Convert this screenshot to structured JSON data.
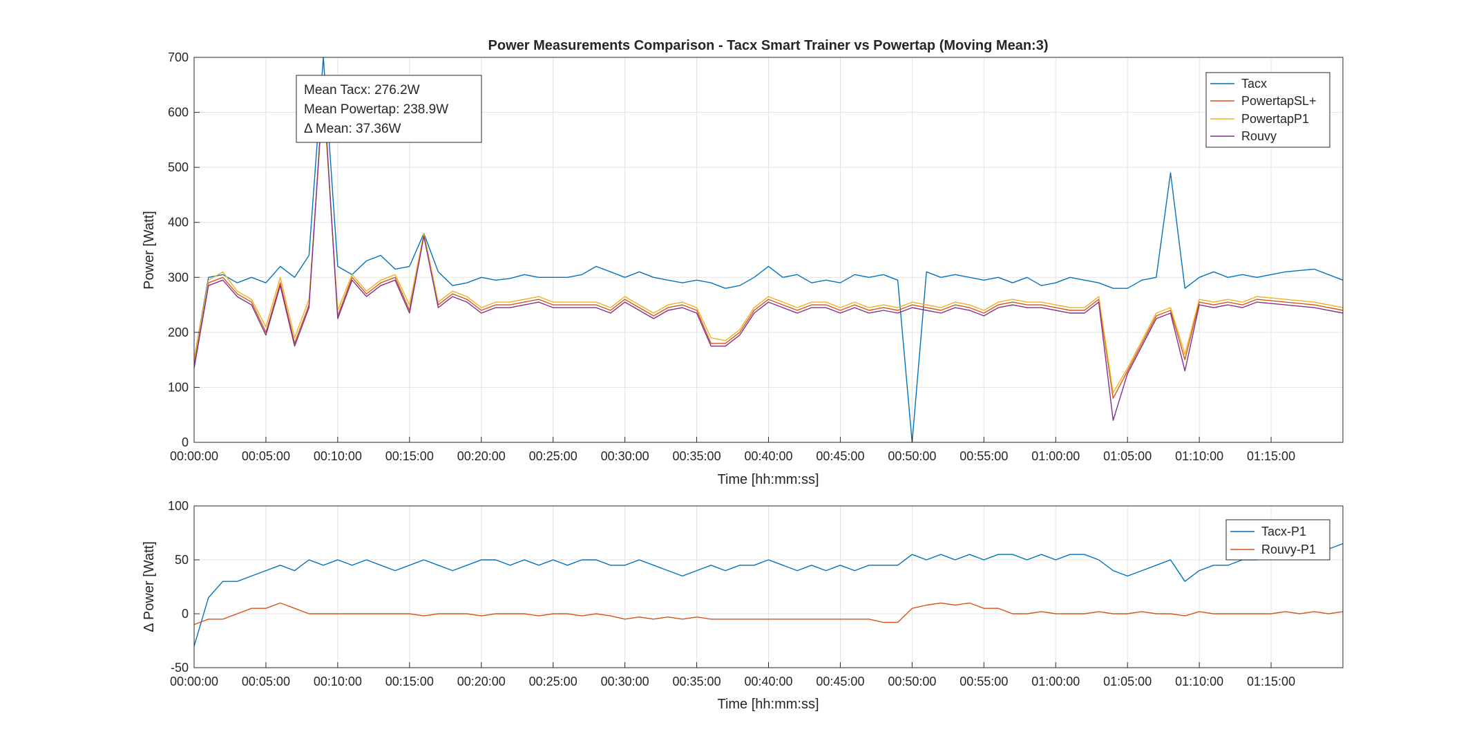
{
  "chart_data": [
    {
      "type": "line",
      "title": "Power Measurements Comparison - Tacx Smart Trainer vs Powertap (Moving Mean:3)",
      "xlabel": "Time [hh:mm:ss]",
      "ylabel": "Power [Watt]",
      "xlim_seconds": [
        0,
        4800
      ],
      "ylim": [
        0,
        700
      ],
      "yticks": [
        0,
        100,
        200,
        300,
        400,
        500,
        600,
        700
      ],
      "xtick_labels": [
        "00:00:00",
        "00:05:00",
        "00:10:00",
        "00:15:00",
        "00:20:00",
        "00:25:00",
        "00:30:00",
        "00:35:00",
        "00:40:00",
        "00:45:00",
        "00:50:00",
        "00:55:00",
        "01:00:00",
        "01:05:00",
        "01:10:00",
        "01:15:00"
      ],
      "grid": true,
      "legend_position": "top-right",
      "annotation": [
        "Mean Tacx: 276.2W",
        "Mean Powertap: 238.9W",
        "Δ Mean: 37.36W"
      ],
      "series": [
        {
          "name": "Tacx",
          "color": "#0072BD",
          "x": [
            0,
            60,
            120,
            180,
            240,
            300,
            360,
            420,
            480,
            540,
            600,
            660,
            720,
            780,
            840,
            900,
            960,
            1020,
            1080,
            1140,
            1200,
            1260,
            1320,
            1380,
            1440,
            1500,
            1560,
            1620,
            1680,
            1740,
            1800,
            1860,
            1920,
            1980,
            2040,
            2100,
            2160,
            2220,
            2280,
            2340,
            2400,
            2460,
            2520,
            2580,
            2640,
            2700,
            2760,
            2820,
            2880,
            2940,
            3000,
            3060,
            3120,
            3180,
            3240,
            3300,
            3360,
            3420,
            3480,
            3540,
            3600,
            3660,
            3720,
            3780,
            3840,
            3900,
            3960,
            4020,
            4080,
            4140,
            4200,
            4260,
            4320,
            4380,
            4440,
            4560,
            4680,
            4800
          ],
          "values": [
            150,
            300,
            305,
            290,
            300,
            290,
            320,
            300,
            340,
            700,
            320,
            305,
            330,
            340,
            315,
            320,
            380,
            310,
            285,
            290,
            300,
            295,
            298,
            305,
            300,
            300,
            300,
            305,
            320,
            310,
            300,
            310,
            300,
            295,
            290,
            295,
            290,
            280,
            285,
            300,
            320,
            300,
            305,
            290,
            295,
            290,
            305,
            300,
            305,
            295,
            0,
            310,
            300,
            305,
            300,
            295,
            300,
            290,
            300,
            285,
            290,
            300,
            295,
            290,
            280,
            280,
            295,
            300,
            490,
            280,
            300,
            310,
            300,
            305,
            300,
            310,
            315,
            295
          ]
        },
        {
          "name": "PowertapSL+",
          "color": "#D95319",
          "x": [
            0,
            60,
            120,
            180,
            240,
            300,
            360,
            420,
            480,
            540,
            600,
            660,
            720,
            780,
            840,
            900,
            960,
            1020,
            1080,
            1140,
            1200,
            1260,
            1320,
            1380,
            1440,
            1500,
            1560,
            1620,
            1680,
            1740,
            1800,
            1860,
            1920,
            1980,
            2040,
            2100,
            2160,
            2220,
            2280,
            2340,
            2400,
            2460,
            2520,
            2580,
            2640,
            2700,
            2760,
            2820,
            2880,
            2940,
            3000,
            3060,
            3120,
            3180,
            3240,
            3300,
            3360,
            3420,
            3480,
            3540,
            3600,
            3660,
            3720,
            3780,
            3840,
            3900,
            3960,
            4020,
            4080,
            4140,
            4200,
            4260,
            4320,
            4380,
            4440,
            4560,
            4680,
            4800
          ],
          "values": [
            140,
            290,
            300,
            270,
            255,
            200,
            290,
            180,
            250,
            640,
            230,
            300,
            270,
            290,
            300,
            240,
            380,
            250,
            270,
            260,
            240,
            250,
            250,
            255,
            260,
            250,
            250,
            250,
            250,
            240,
            260,
            245,
            230,
            245,
            250,
            240,
            180,
            180,
            200,
            240,
            260,
            250,
            240,
            250,
            250,
            240,
            250,
            240,
            245,
            240,
            250,
            245,
            240,
            250,
            245,
            235,
            250,
            255,
            250,
            250,
            245,
            240,
            240,
            260,
            80,
            130,
            180,
            230,
            240,
            150,
            255,
            250,
            255,
            250,
            260,
            255,
            250,
            240
          ]
        },
        {
          "name": "PowertapP1",
          "color": "#EDB120",
          "x": [
            0,
            60,
            120,
            180,
            240,
            300,
            360,
            420,
            480,
            540,
            600,
            660,
            720,
            780,
            840,
            900,
            960,
            1020,
            1080,
            1140,
            1200,
            1260,
            1320,
            1380,
            1440,
            1500,
            1560,
            1620,
            1680,
            1740,
            1800,
            1860,
            1920,
            1980,
            2040,
            2100,
            2160,
            2220,
            2280,
            2340,
            2400,
            2460,
            2520,
            2580,
            2640,
            2700,
            2760,
            2820,
            2880,
            2940,
            3000,
            3060,
            3120,
            3180,
            3240,
            3300,
            3360,
            3420,
            3480,
            3540,
            3600,
            3660,
            3720,
            3780,
            3840,
            3900,
            3960,
            4020,
            4080,
            4140,
            4200,
            4260,
            4320,
            4380,
            4440,
            4560,
            4680,
            4800
          ],
          "values": [
            150,
            295,
            310,
            275,
            260,
            210,
            300,
            190,
            260,
            630,
            240,
            305,
            275,
            295,
            305,
            250,
            380,
            255,
            275,
            265,
            245,
            255,
            255,
            260,
            265,
            255,
            255,
            255,
            255,
            245,
            265,
            250,
            235,
            250,
            255,
            245,
            190,
            185,
            205,
            245,
            265,
            255,
            245,
            255,
            255,
            245,
            255,
            245,
            250,
            245,
            255,
            250,
            245,
            255,
            250,
            240,
            255,
            260,
            255,
            255,
            250,
            245,
            245,
            265,
            90,
            135,
            185,
            235,
            245,
            160,
            260,
            255,
            260,
            255,
            265,
            260,
            255,
            245
          ]
        },
        {
          "name": "Rouvy",
          "color": "#7E2F8E",
          "x": [
            0,
            60,
            120,
            180,
            240,
            300,
            360,
            420,
            480,
            540,
            600,
            660,
            720,
            780,
            840,
            900,
            960,
            1020,
            1080,
            1140,
            1200,
            1260,
            1320,
            1380,
            1440,
            1500,
            1560,
            1620,
            1680,
            1740,
            1800,
            1860,
            1920,
            1980,
            2040,
            2100,
            2160,
            2220,
            2280,
            2340,
            2400,
            2460,
            2520,
            2580,
            2640,
            2700,
            2760,
            2820,
            2880,
            2940,
            3000,
            3060,
            3120,
            3180,
            3240,
            3300,
            3360,
            3420,
            3480,
            3540,
            3600,
            3660,
            3720,
            3780,
            3840,
            3900,
            3960,
            4020,
            4080,
            4140,
            4200,
            4260,
            4320,
            4380,
            4440,
            4560,
            4680,
            4800
          ],
          "values": [
            135,
            285,
            295,
            265,
            250,
            195,
            285,
            175,
            245,
            650,
            225,
            295,
            265,
            285,
            295,
            235,
            375,
            245,
            265,
            255,
            235,
            245,
            245,
            250,
            255,
            245,
            245,
            245,
            245,
            235,
            255,
            240,
            225,
            240,
            245,
            235,
            175,
            175,
            195,
            235,
            255,
            245,
            235,
            245,
            245,
            235,
            245,
            235,
            240,
            235,
            245,
            240,
            235,
            245,
            240,
            230,
            245,
            250,
            245,
            245,
            240,
            235,
            235,
            255,
            40,
            125,
            175,
            225,
            235,
            130,
            250,
            245,
            250,
            245,
            255,
            250,
            245,
            235
          ]
        }
      ]
    },
    {
      "type": "line",
      "xlabel": "Time [hh:mm:ss]",
      "ylabel": "Δ Power [Watt]",
      "xlim_seconds": [
        0,
        4800
      ],
      "ylim": [
        -50,
        100
      ],
      "yticks": [
        -50,
        0,
        50,
        100
      ],
      "xtick_labels": [
        "00:00:00",
        "00:05:00",
        "00:10:00",
        "00:15:00",
        "00:20:00",
        "00:25:00",
        "00:30:00",
        "00:35:00",
        "00:40:00",
        "00:45:00",
        "00:50:00",
        "00:55:00",
        "01:00:00",
        "01:05:00",
        "01:10:00",
        "01:15:00"
      ],
      "grid": true,
      "legend_position": "top-right",
      "series": [
        {
          "name": "Tacx-P1",
          "color": "#0072BD",
          "x": [
            0,
            60,
            120,
            180,
            240,
            300,
            360,
            420,
            480,
            540,
            600,
            660,
            720,
            780,
            840,
            900,
            960,
            1020,
            1080,
            1140,
            1200,
            1260,
            1320,
            1380,
            1440,
            1500,
            1560,
            1620,
            1680,
            1740,
            1800,
            1860,
            1920,
            1980,
            2040,
            2100,
            2160,
            2220,
            2280,
            2340,
            2400,
            2460,
            2520,
            2580,
            2640,
            2700,
            2760,
            2820,
            2880,
            2940,
            3000,
            3060,
            3120,
            3180,
            3240,
            3300,
            3360,
            3420,
            3480,
            3540,
            3600,
            3660,
            3720,
            3780,
            3840,
            3900,
            3960,
            4020,
            4080,
            4140,
            4200,
            4260,
            4320,
            4380,
            4440,
            4500,
            4560,
            4620,
            4680,
            4740,
            4800
          ],
          "values": [
            -30,
            15,
            30,
            30,
            35,
            40,
            45,
            40,
            50,
            45,
            50,
            45,
            50,
            45,
            40,
            45,
            50,
            45,
            40,
            45,
            50,
            50,
            45,
            50,
            45,
            50,
            45,
            50,
            50,
            45,
            45,
            50,
            45,
            40,
            35,
            40,
            45,
            40,
            45,
            45,
            50,
            45,
            40,
            45,
            40,
            45,
            40,
            45,
            45,
            45,
            55,
            50,
            55,
            50,
            55,
            50,
            55,
            55,
            50,
            55,
            50,
            55,
            55,
            50,
            40,
            35,
            40,
            45,
            50,
            30,
            40,
            45,
            45,
            50,
            50,
            55,
            55,
            55,
            60,
            60,
            65
          ]
        },
        {
          "name": "Rouvy-P1",
          "color": "#D95319",
          "x": [
            0,
            60,
            120,
            180,
            240,
            300,
            360,
            420,
            480,
            540,
            600,
            660,
            720,
            780,
            840,
            900,
            960,
            1020,
            1080,
            1140,
            1200,
            1260,
            1320,
            1380,
            1440,
            1500,
            1560,
            1620,
            1680,
            1740,
            1800,
            1860,
            1920,
            1980,
            2040,
            2100,
            2160,
            2220,
            2280,
            2340,
            2400,
            2460,
            2520,
            2580,
            2640,
            2700,
            2760,
            2820,
            2880,
            2940,
            3000,
            3060,
            3120,
            3180,
            3240,
            3300,
            3360,
            3420,
            3480,
            3540,
            3600,
            3660,
            3720,
            3780,
            3840,
            3900,
            3960,
            4020,
            4080,
            4140,
            4200,
            4260,
            4320,
            4380,
            4440,
            4500,
            4560,
            4620,
            4680,
            4740,
            4800
          ],
          "values": [
            -10,
            -5,
            -5,
            0,
            5,
            5,
            10,
            5,
            0,
            0,
            0,
            0,
            0,
            0,
            0,
            0,
            -2,
            0,
            0,
            0,
            -2,
            0,
            0,
            0,
            -2,
            0,
            0,
            -2,
            0,
            -2,
            -5,
            -3,
            -5,
            -3,
            -5,
            -3,
            -5,
            -5,
            -5,
            -5,
            -5,
            -5,
            -5,
            -5,
            -5,
            -5,
            -5,
            -5,
            -8,
            -8,
            5,
            8,
            10,
            8,
            10,
            5,
            5,
            0,
            0,
            2,
            0,
            0,
            0,
            2,
            0,
            0,
            2,
            0,
            0,
            -2,
            2,
            0,
            0,
            0,
            0,
            0,
            2,
            0,
            2,
            0,
            2
          ]
        }
      ]
    }
  ]
}
